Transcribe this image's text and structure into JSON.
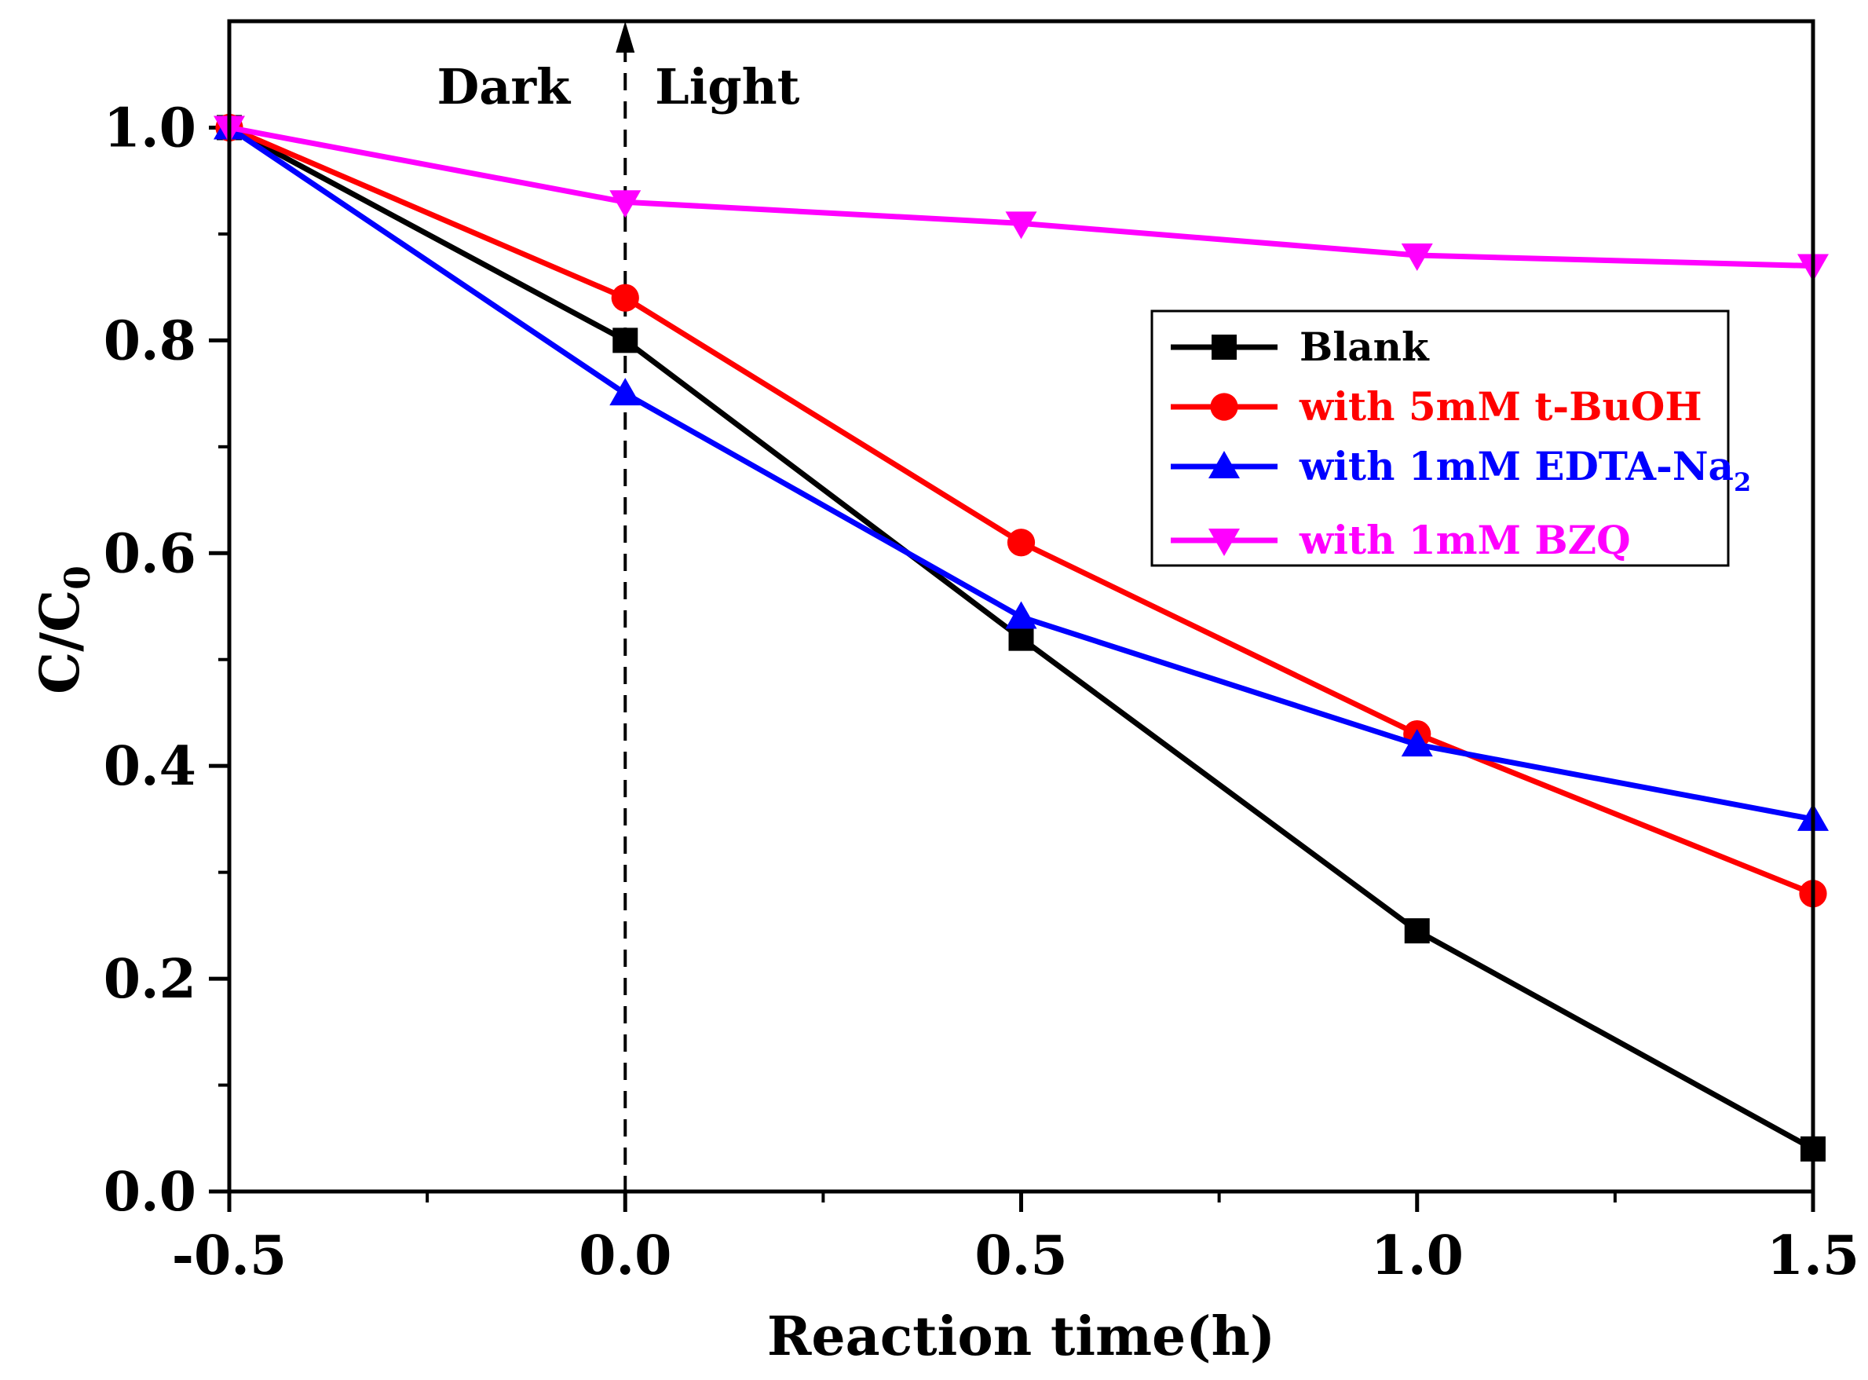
{
  "chart_data": {
    "type": "line",
    "title": "",
    "xlabel": "Reaction time(h)",
    "ylabel_main": "C/C",
    "ylabel_sub": "0",
    "xlim": [
      -0.5,
      1.5
    ],
    "ylim": [
      0.0,
      1.1
    ],
    "x_ticks": [
      -0.5,
      0.0,
      0.5,
      1.0,
      1.5
    ],
    "x_tick_labels": [
      "-0.5",
      "0.0",
      "0.5",
      "1.0",
      "1.5"
    ],
    "x_minor_ticks": [
      -0.25,
      0.25,
      0.75,
      1.25
    ],
    "y_ticks": [
      0.0,
      0.2,
      0.4,
      0.6,
      0.8,
      1.0
    ],
    "y_tick_labels": [
      "0.0",
      "0.2",
      "0.4",
      "0.6",
      "0.8",
      "1.0"
    ],
    "y_minor_ticks": [
      0.1,
      0.3,
      0.5,
      0.7,
      0.9
    ],
    "x": [
      -0.5,
      0.0,
      0.5,
      1.0,
      1.5
    ],
    "grid": false,
    "legend_position": "upper-right",
    "series": [
      {
        "name": "Blank",
        "label_main": "Blank",
        "label_sub": "",
        "color": "#000000",
        "marker": "square",
        "values": [
          1.0,
          0.8,
          0.52,
          0.245,
          0.04
        ]
      },
      {
        "name": "with 5mM t-BuOH",
        "label_main": "with 5mM t-BuOH",
        "label_sub": "",
        "color": "#ff0000",
        "marker": "circle",
        "values": [
          1.0,
          0.84,
          0.61,
          0.43,
          0.28
        ]
      },
      {
        "name": "with 1mM EDTA-Na2",
        "label_main": "with 1mM EDTA-Na",
        "label_sub": "2",
        "color": "#0000ff",
        "marker": "triangle-up",
        "values": [
          1.0,
          0.75,
          0.54,
          0.42,
          0.35
        ]
      },
      {
        "name": "with 1mM BZQ",
        "label_main": "with 1mM BZQ",
        "label_sub": "",
        "color": "#ff00ff",
        "marker": "triangle-down",
        "values": [
          1.0,
          0.93,
          0.91,
          0.88,
          0.87
        ]
      }
    ],
    "annotations": {
      "divider_x": 0.0,
      "dark_label": "Dark",
      "light_label": "Light"
    }
  }
}
